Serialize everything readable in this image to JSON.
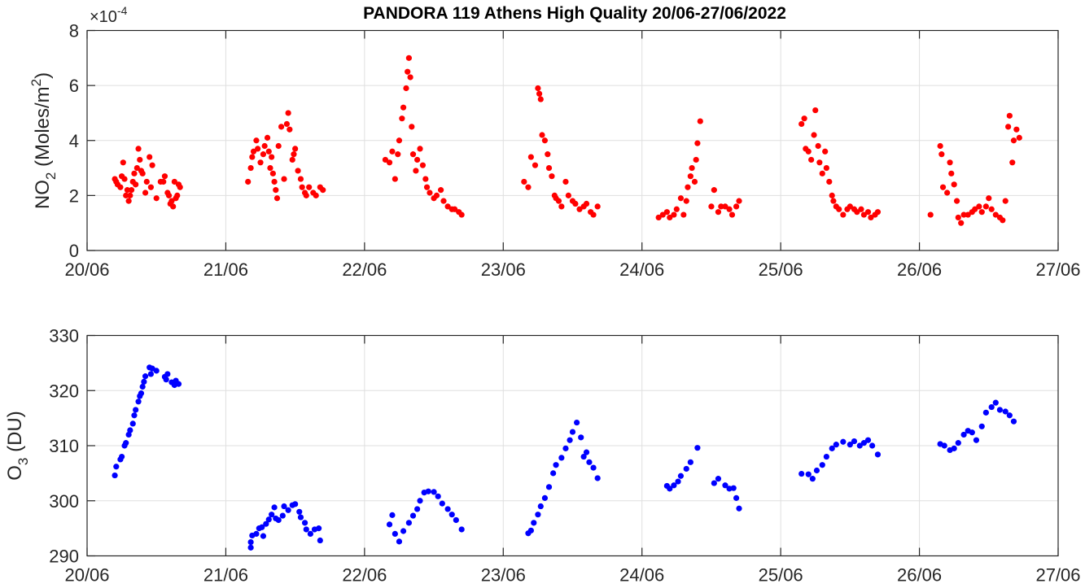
{
  "chart_data": [
    {
      "type": "scatter",
      "title": "PANDORA 119 Athens High Quality 20/06-27/06/2022",
      "ylabel": "NO2 (Moles/m2)",
      "ylabel_main": "NO",
      "ylabel_sub": "2",
      "ylabel_rest": " (Moles/m",
      "ylabel_sup": "2",
      "ylabel_close": ")",
      "exponent_label": "×10",
      "exponent_power": "-4",
      "xlabel": "",
      "x_unit": "days since 20/06/2022",
      "xlim": [
        0,
        7
      ],
      "ylim": [
        0,
        8
      ],
      "xticks": [
        "20/06",
        "21/06",
        "22/06",
        "23/06",
        "24/06",
        "25/06",
        "26/06",
        "27/06"
      ],
      "yticks": [
        "0",
        "2",
        "4",
        "6",
        "8"
      ],
      "grid": true,
      "color": "#ff0000",
      "points": [
        [
          0.2,
          2.6
        ],
        [
          0.21,
          2.5
        ],
        [
          0.22,
          2.4
        ],
        [
          0.24,
          2.3
        ],
        [
          0.25,
          2.7
        ],
        [
          0.26,
          3.2
        ],
        [
          0.27,
          2.6
        ],
        [
          0.28,
          2.0
        ],
        [
          0.29,
          2.2
        ],
        [
          0.3,
          1.8
        ],
        [
          0.31,
          2.0
        ],
        [
          0.32,
          2.2
        ],
        [
          0.33,
          2.5
        ],
        [
          0.34,
          2.8
        ],
        [
          0.35,
          2.4
        ],
        [
          0.36,
          3.0
        ],
        [
          0.37,
          3.7
        ],
        [
          0.38,
          3.3
        ],
        [
          0.39,
          2.9
        ],
        [
          0.4,
          2.8
        ],
        [
          0.42,
          2.1
        ],
        [
          0.43,
          2.5
        ],
        [
          0.45,
          3.4
        ],
        [
          0.46,
          2.3
        ],
        [
          0.47,
          3.1
        ],
        [
          0.5,
          1.9
        ],
        [
          0.53,
          2.5
        ],
        [
          0.55,
          2.5
        ],
        [
          0.56,
          2.7
        ],
        [
          0.58,
          2.1
        ],
        [
          0.59,
          2.0
        ],
        [
          0.6,
          1.7
        ],
        [
          0.61,
          1.8
        ],
        [
          0.62,
          1.6
        ],
        [
          0.63,
          2.5
        ],
        [
          0.64,
          1.9
        ],
        [
          0.65,
          2.0
        ],
        [
          0.66,
          2.4
        ],
        [
          0.67,
          2.3
        ],
        [
          1.16,
          2.5
        ],
        [
          1.18,
          3.0
        ],
        [
          1.19,
          3.4
        ],
        [
          1.2,
          3.6
        ],
        [
          1.22,
          4.0
        ],
        [
          1.23,
          3.7
        ],
        [
          1.25,
          3.2
        ],
        [
          1.27,
          3.5
        ],
        [
          1.28,
          3.8
        ],
        [
          1.3,
          4.1
        ],
        [
          1.31,
          3.6
        ],
        [
          1.32,
          3.0
        ],
        [
          1.33,
          3.4
        ],
        [
          1.34,
          2.8
        ],
        [
          1.35,
          2.5
        ],
        [
          1.36,
          2.2
        ],
        [
          1.37,
          1.9
        ],
        [
          1.38,
          3.8
        ],
        [
          1.4,
          4.5
        ],
        [
          1.42,
          2.6
        ],
        [
          1.44,
          4.6
        ],
        [
          1.45,
          5.0
        ],
        [
          1.46,
          4.4
        ],
        [
          1.48,
          3.3
        ],
        [
          1.49,
          3.5
        ],
        [
          1.5,
          3.7
        ],
        [
          1.52,
          2.9
        ],
        [
          1.54,
          2.6
        ],
        [
          1.55,
          2.3
        ],
        [
          1.57,
          2.1
        ],
        [
          1.58,
          2.0
        ],
        [
          1.6,
          2.3
        ],
        [
          1.63,
          2.1
        ],
        [
          1.65,
          2.0
        ],
        [
          1.68,
          2.3
        ],
        [
          1.7,
          2.2
        ],
        [
          2.15,
          3.3
        ],
        [
          2.18,
          3.2
        ],
        [
          2.2,
          3.6
        ],
        [
          2.22,
          2.6
        ],
        [
          2.24,
          3.5
        ],
        [
          2.25,
          4.0
        ],
        [
          2.27,
          4.8
        ],
        [
          2.28,
          5.2
        ],
        [
          2.3,
          5.9
        ],
        [
          2.31,
          6.5
        ],
        [
          2.32,
          7.0
        ],
        [
          2.33,
          6.3
        ],
        [
          2.34,
          4.5
        ],
        [
          2.35,
          3.5
        ],
        [
          2.37,
          2.9
        ],
        [
          2.38,
          3.3
        ],
        [
          2.4,
          3.7
        ],
        [
          2.42,
          3.1
        ],
        [
          2.44,
          2.6
        ],
        [
          2.45,
          2.3
        ],
        [
          2.47,
          2.1
        ],
        [
          2.5,
          1.9
        ],
        [
          2.52,
          2.0
        ],
        [
          2.55,
          2.2
        ],
        [
          2.57,
          1.8
        ],
        [
          2.6,
          1.6
        ],
        [
          2.63,
          1.5
        ],
        [
          2.65,
          1.5
        ],
        [
          2.68,
          1.4
        ],
        [
          2.7,
          1.3
        ],
        [
          3.15,
          2.5
        ],
        [
          3.18,
          2.3
        ],
        [
          3.2,
          3.4
        ],
        [
          3.23,
          3.1
        ],
        [
          3.25,
          5.9
        ],
        [
          3.26,
          5.7
        ],
        [
          3.27,
          5.5
        ],
        [
          3.28,
          4.2
        ],
        [
          3.3,
          4.0
        ],
        [
          3.32,
          3.5
        ],
        [
          3.33,
          3.0
        ],
        [
          3.35,
          2.7
        ],
        [
          3.37,
          2.0
        ],
        [
          3.38,
          1.9
        ],
        [
          3.4,
          1.8
        ],
        [
          3.42,
          1.6
        ],
        [
          3.45,
          2.5
        ],
        [
          3.47,
          2.0
        ],
        [
          3.5,
          1.8
        ],
        [
          3.52,
          1.7
        ],
        [
          3.55,
          1.5
        ],
        [
          3.58,
          1.6
        ],
        [
          3.6,
          1.7
        ],
        [
          3.63,
          1.4
        ],
        [
          3.65,
          1.3
        ],
        [
          3.68,
          1.6
        ],
        [
          4.12,
          1.2
        ],
        [
          4.15,
          1.3
        ],
        [
          4.18,
          1.4
        ],
        [
          4.2,
          1.2
        ],
        [
          4.23,
          1.3
        ],
        [
          4.25,
          1.5
        ],
        [
          4.28,
          1.9
        ],
        [
          4.3,
          1.3
        ],
        [
          4.32,
          1.8
        ],
        [
          4.33,
          2.3
        ],
        [
          4.35,
          2.7
        ],
        [
          4.36,
          3.0
        ],
        [
          4.38,
          2.5
        ],
        [
          4.39,
          3.3
        ],
        [
          4.4,
          3.9
        ],
        [
          4.42,
          4.7
        ],
        [
          4.5,
          1.6
        ],
        [
          4.52,
          2.2
        ],
        [
          4.55,
          1.4
        ],
        [
          4.57,
          1.6
        ],
        [
          4.6,
          1.6
        ],
        [
          4.63,
          1.5
        ],
        [
          4.65,
          1.3
        ],
        [
          4.68,
          1.6
        ],
        [
          4.7,
          1.8
        ],
        [
          5.15,
          4.6
        ],
        [
          5.17,
          4.8
        ],
        [
          5.18,
          3.7
        ],
        [
          5.2,
          3.6
        ],
        [
          5.22,
          3.3
        ],
        [
          5.24,
          4.2
        ],
        [
          5.25,
          5.1
        ],
        [
          5.27,
          3.8
        ],
        [
          5.28,
          3.2
        ],
        [
          5.3,
          2.8
        ],
        [
          5.32,
          3.6
        ],
        [
          5.33,
          3.0
        ],
        [
          5.35,
          2.5
        ],
        [
          5.37,
          2.0
        ],
        [
          5.38,
          1.8
        ],
        [
          5.4,
          1.6
        ],
        [
          5.42,
          1.5
        ],
        [
          5.45,
          1.3
        ],
        [
          5.48,
          1.5
        ],
        [
          5.5,
          1.6
        ],
        [
          5.53,
          1.5
        ],
        [
          5.55,
          1.4
        ],
        [
          5.58,
          1.5
        ],
        [
          5.6,
          1.3
        ],
        [
          5.63,
          1.4
        ],
        [
          5.65,
          1.2
        ],
        [
          5.68,
          1.3
        ],
        [
          5.7,
          1.4
        ],
        [
          6.08,
          1.3
        ],
        [
          6.15,
          3.8
        ],
        [
          6.16,
          3.5
        ],
        [
          6.17,
          2.3
        ],
        [
          6.2,
          2.1
        ],
        [
          6.22,
          3.2
        ],
        [
          6.23,
          2.8
        ],
        [
          6.25,
          2.4
        ],
        [
          6.27,
          1.8
        ],
        [
          6.28,
          1.2
        ],
        [
          6.3,
          1.0
        ],
        [
          6.32,
          1.3
        ],
        [
          6.35,
          1.3
        ],
        [
          6.38,
          1.4
        ],
        [
          6.4,
          1.5
        ],
        [
          6.43,
          1.6
        ],
        [
          6.45,
          1.4
        ],
        [
          6.48,
          1.6
        ],
        [
          6.5,
          1.9
        ],
        [
          6.52,
          1.5
        ],
        [
          6.55,
          1.3
        ],
        [
          6.58,
          1.2
        ],
        [
          6.6,
          1.1
        ],
        [
          6.62,
          1.8
        ],
        [
          6.64,
          4.5
        ],
        [
          6.65,
          4.9
        ],
        [
          6.67,
          3.2
        ],
        [
          6.68,
          4.0
        ],
        [
          6.7,
          4.4
        ],
        [
          6.72,
          4.1
        ]
      ]
    },
    {
      "type": "scatter",
      "title": "",
      "ylabel": "O3 (DU)",
      "ylabel_main": "O",
      "ylabel_sub": "3",
      "ylabel_rest": " (DU)",
      "xlabel": "",
      "x_unit": "days since 20/06/2022",
      "xlim": [
        0,
        7
      ],
      "ylim": [
        290,
        330
      ],
      "xticks": [
        "20/06",
        "21/06",
        "22/06",
        "23/06",
        "24/06",
        "25/06",
        "26/06",
        "27/06"
      ],
      "yticks": [
        "290",
        "300",
        "310",
        "320",
        "330"
      ],
      "grid": true,
      "color": "#0000ff",
      "points": [
        [
          0.2,
          304.6
        ],
        [
          0.21,
          306.2
        ],
        [
          0.24,
          307.5
        ],
        [
          0.25,
          308
        ],
        [
          0.27,
          310
        ],
        [
          0.28,
          310.5
        ],
        [
          0.3,
          312
        ],
        [
          0.31,
          312.8
        ],
        [
          0.33,
          314
        ],
        [
          0.34,
          315.5
        ],
        [
          0.35,
          316.5
        ],
        [
          0.37,
          318
        ],
        [
          0.38,
          319
        ],
        [
          0.39,
          319.5
        ],
        [
          0.4,
          320.7
        ],
        [
          0.41,
          321.6
        ],
        [
          0.42,
          322.6
        ],
        [
          0.45,
          324.2
        ],
        [
          0.46,
          323
        ],
        [
          0.47,
          324
        ],
        [
          0.5,
          323.6
        ],
        [
          0.56,
          322.5
        ],
        [
          0.57,
          322
        ],
        [
          0.58,
          323
        ],
        [
          0.61,
          321.5
        ],
        [
          0.63,
          321
        ],
        [
          0.64,
          321.8
        ],
        [
          0.66,
          321.2
        ],
        [
          1.18,
          291.5
        ],
        [
          1.18,
          292.5
        ],
        [
          1.19,
          293.7
        ],
        [
          1.22,
          294
        ],
        [
          1.24,
          295
        ],
        [
          1.26,
          295.2
        ],
        [
          1.27,
          293.6
        ],
        [
          1.29,
          295.8
        ],
        [
          1.31,
          296.6
        ],
        [
          1.33,
          297.5
        ],
        [
          1.35,
          298.8
        ],
        [
          1.36,
          296.8
        ],
        [
          1.38,
          296.5
        ],
        [
          1.41,
          297.3
        ],
        [
          1.42,
          299
        ],
        [
          1.45,
          298.3
        ],
        [
          1.48,
          299.2
        ],
        [
          1.5,
          299.4
        ],
        [
          1.53,
          298
        ],
        [
          1.54,
          297
        ],
        [
          1.57,
          296
        ],
        [
          1.58,
          294.8
        ],
        [
          1.61,
          294
        ],
        [
          1.64,
          294.8
        ],
        [
          1.67,
          295
        ],
        [
          1.68,
          292.8
        ],
        [
          2.18,
          295.7
        ],
        [
          2.2,
          297.4
        ],
        [
          2.22,
          294
        ],
        [
          2.25,
          292.6
        ],
        [
          2.28,
          294.5
        ],
        [
          2.32,
          296
        ],
        [
          2.35,
          297.3
        ],
        [
          2.38,
          298.5
        ],
        [
          2.4,
          300
        ],
        [
          2.43,
          301.5
        ],
        [
          2.46,
          301.7
        ],
        [
          2.5,
          301.6
        ],
        [
          2.53,
          300.8
        ],
        [
          2.56,
          299.5
        ],
        [
          2.6,
          298.5
        ],
        [
          2.63,
          297.5
        ],
        [
          2.66,
          296.5
        ],
        [
          2.7,
          294.8
        ],
        [
          3.18,
          294.1
        ],
        [
          3.2,
          294.6
        ],
        [
          3.22,
          296
        ],
        [
          3.25,
          297.5
        ],
        [
          3.27,
          299
        ],
        [
          3.3,
          300.5
        ],
        [
          3.33,
          302.5
        ],
        [
          3.36,
          305
        ],
        [
          3.38,
          306.5
        ],
        [
          3.42,
          307.8
        ],
        [
          3.45,
          309.5
        ],
        [
          3.48,
          311
        ],
        [
          3.5,
          312.5
        ],
        [
          3.53,
          314.2
        ],
        [
          3.56,
          311.5
        ],
        [
          3.58,
          308
        ],
        [
          3.6,
          308.8
        ],
        [
          3.62,
          307
        ],
        [
          3.65,
          306
        ],
        [
          3.68,
          304.1
        ],
        [
          4.18,
          302.7
        ],
        [
          4.2,
          302.2
        ],
        [
          4.23,
          302.8
        ],
        [
          4.26,
          303.5
        ],
        [
          4.28,
          304.5
        ],
        [
          4.32,
          305.8
        ],
        [
          4.35,
          307
        ],
        [
          4.4,
          309.6
        ],
        [
          4.52,
          303.2
        ],
        [
          4.55,
          304
        ],
        [
          4.6,
          302.8
        ],
        [
          4.63,
          302.2
        ],
        [
          4.66,
          302.3
        ],
        [
          4.68,
          300.5
        ],
        [
          4.7,
          298.6
        ],
        [
          5.15,
          304.9
        ],
        [
          5.2,
          304.8
        ],
        [
          5.23,
          304
        ],
        [
          5.26,
          305.5
        ],
        [
          5.3,
          306.5
        ],
        [
          5.33,
          308
        ],
        [
          5.37,
          309.5
        ],
        [
          5.4,
          310.2
        ],
        [
          5.45,
          310.7
        ],
        [
          5.5,
          310.2
        ],
        [
          5.53,
          310.8
        ],
        [
          5.57,
          310
        ],
        [
          5.6,
          310.5
        ],
        [
          5.63,
          311
        ],
        [
          5.66,
          310
        ],
        [
          5.7,
          308.4
        ],
        [
          6.15,
          310.3
        ],
        [
          6.18,
          310
        ],
        [
          6.22,
          309.2
        ],
        [
          6.25,
          309.5
        ],
        [
          6.28,
          310.5
        ],
        [
          6.32,
          312
        ],
        [
          6.35,
          312.7
        ],
        [
          6.38,
          312.4
        ],
        [
          6.41,
          311
        ],
        [
          6.45,
          313.5
        ],
        [
          6.48,
          316
        ],
        [
          6.52,
          317
        ],
        [
          6.55,
          317.8
        ],
        [
          6.58,
          316.5
        ],
        [
          6.62,
          316.2
        ],
        [
          6.65,
          315.5
        ],
        [
          6.68,
          314.4
        ]
      ]
    }
  ]
}
